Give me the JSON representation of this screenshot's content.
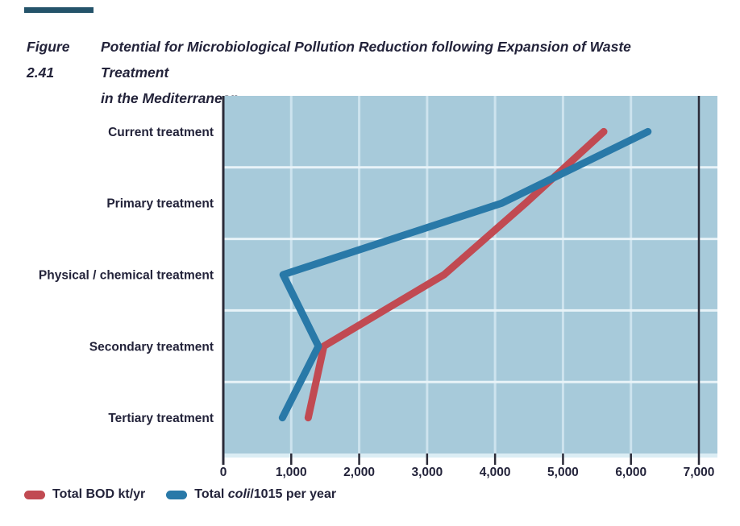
{
  "figure": {
    "label": "Figure 2.41",
    "title_line1": "Potential for Microbiological Pollution Reduction following Expansion of Waste Treatment",
    "title_line2": "in the Mediterranean"
  },
  "legend": {
    "items": [
      {
        "swatch_color": "#c14a52",
        "text_prefix": "Total BOD kt/yr",
        "text_italic": "",
        "text_suffix": ""
      },
      {
        "swatch_color": "#2979a8",
        "text_prefix": "Total ",
        "text_italic": "coli",
        "text_suffix": "/1015 per year"
      }
    ]
  },
  "chart_data": {
    "type": "line",
    "title": "Figure 2.41 Potential for Microbiological Pollution Reduction following Expansion of Waste Treatment in the Mediterranean",
    "orientation": "categories-on-y-axis, values-on-x-axis",
    "categories": [
      "Current treatment",
      "Primary treatment",
      "Physical / chemical treatment",
      "Secondary treatment",
      "Tertiary treatment"
    ],
    "series": [
      {
        "name": "Total BOD kt/yr",
        "color": "#c14a52",
        "values": [
          5600,
          4450,
          3250,
          1480,
          1250
        ]
      },
      {
        "name": "Total coli/1015 per year",
        "color": "#2979a8",
        "values": [
          6250,
          4100,
          880,
          1400,
          870
        ]
      }
    ],
    "xlim": [
      0,
      7000
    ],
    "x_ticks": [
      0,
      1000,
      2000,
      3000,
      4000,
      5000,
      6000,
      7000
    ],
    "x_tick_labels": [
      "0",
      "1,000",
      "2,000",
      "3,000",
      "4,000",
      "5,000",
      "6,000",
      "7,000"
    ],
    "xlabel": "",
    "ylabel": "",
    "grid": true,
    "legend_position": "bottom-left",
    "colors": {
      "plot_background": "#a7cada",
      "grid_vertical": "#cde3ee",
      "grid_horizontal": "#e8f3f8",
      "below_plot_strip": "#dbedf4",
      "axis_dark": "#2b2b38",
      "label_text": "#23233a"
    }
  }
}
